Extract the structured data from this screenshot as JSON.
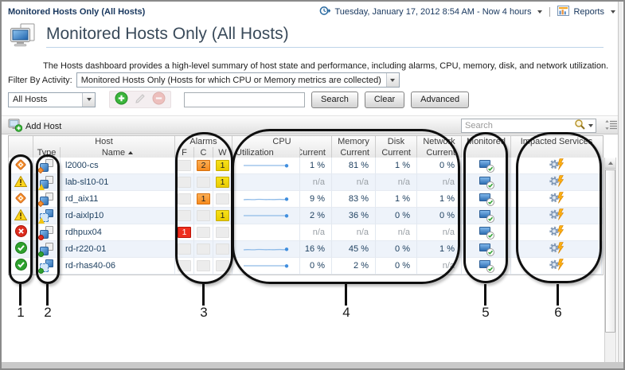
{
  "page": {
    "breadcrumb": "Monitored Hosts Only (All Hosts)",
    "title": "Monitored Hosts Only (All Hosts)",
    "description": "The Hosts dashboard provides a high-level summary of host state and performance, including alarms, CPU, memory, disk, and network utilization.",
    "timebar": {
      "range": "Tuesday, January 17, 2012 8:54 AM - Now 4 hours",
      "reports_label": "Reports"
    }
  },
  "filter": {
    "label": "Filter By Activity:",
    "value": "Monitored Hosts Only (Hosts for which CPU or Memory metrics are collected)"
  },
  "toolbar": {
    "scope_value": "All Hosts",
    "filter_input_value": "",
    "search_button": "Search",
    "clear_button": "Clear",
    "advanced_button": "Advanced"
  },
  "table_toolbar": {
    "add_host_label": "Add Host",
    "search_placeholder": "Search"
  },
  "table": {
    "group_headers": {
      "host": "Host",
      "alarms": "Alarms",
      "cpu": "CPU",
      "memory": "Memory",
      "disk": "Disk",
      "network": "Network",
      "monitored": "Monitored",
      "impacted": "Impacted Services"
    },
    "sub_headers": {
      "type": "Type",
      "name": "Name",
      "f": "F",
      "c": "C",
      "w": "W",
      "utilization": "Utilization",
      "current": "Current"
    },
    "rows": [
      {
        "name": "l2000-cs",
        "severity": "critical",
        "host_type": "physical",
        "alarms": {
          "f": "",
          "c": "2",
          "w": "1"
        },
        "sparkline": "flat",
        "cpu_current": "1 %",
        "memory_current": "81 %",
        "disk_current": "1 %",
        "network_current": "0 %",
        "monitored": true,
        "impacted_services": true
      },
      {
        "name": "lab-sl10-01",
        "severity": "warning",
        "host_type": "physical",
        "alarms": {
          "f": "",
          "c": "",
          "w": "1"
        },
        "sparkline": "none",
        "cpu_current": "n/a",
        "memory_current": "n/a",
        "disk_current": "n/a",
        "network_current": "n/a",
        "monitored": true,
        "impacted_services": true
      },
      {
        "name": "rd_aix11",
        "severity": "critical",
        "host_type": "physical",
        "alarms": {
          "f": "",
          "c": "1",
          "w": ""
        },
        "sparkline": "wavy",
        "cpu_current": "9 %",
        "memory_current": "83 %",
        "disk_current": "1 %",
        "network_current": "1 %",
        "monitored": true,
        "impacted_services": true
      },
      {
        "name": "rd-aixlp10",
        "severity": "warning",
        "host_type": "virtual",
        "alarms": {
          "f": "",
          "c": "",
          "w": "1"
        },
        "sparkline": "flat",
        "cpu_current": "2 %",
        "memory_current": "36 %",
        "disk_current": "0 %",
        "network_current": "0 %",
        "monitored": true,
        "impacted_services": true
      },
      {
        "name": "rdhpux04",
        "severity": "fatal",
        "host_type": "physical",
        "alarms": {
          "f": "1",
          "c": "",
          "w": ""
        },
        "sparkline": "none",
        "cpu_current": "n/a",
        "memory_current": "n/a",
        "disk_current": "n/a",
        "network_current": "n/a",
        "monitored": true,
        "impacted_services": true
      },
      {
        "name": "rd-r220-01",
        "severity": "normal",
        "host_type": "physical",
        "alarms": {
          "f": "",
          "c": "",
          "w": ""
        },
        "sparkline": "wavy",
        "cpu_current": "16 %",
        "memory_current": "45 %",
        "disk_current": "0 %",
        "network_current": "1 %",
        "monitored": true,
        "impacted_services": true
      },
      {
        "name": "rd-rhas40-06",
        "severity": "normal",
        "host_type": "virtual",
        "alarms": {
          "f": "",
          "c": "",
          "w": ""
        },
        "sparkline": "flat",
        "cpu_current": "0 %",
        "memory_current": "2 %",
        "disk_current": "0 %",
        "network_current": "n/a",
        "monitored": true,
        "impacted_services": true
      }
    ]
  },
  "annotations": {
    "labels": [
      "1",
      "2",
      "3",
      "4",
      "5",
      "6"
    ]
  },
  "colors": {
    "alarm_fatal": "#ee2e1e",
    "alarm_critical": "#f68b1f",
    "alarm_warning": "#efd400",
    "status_normal": "#2ea12e",
    "sparkline_blue": "#8fbbe8",
    "accent_blue": "#2f6fb2"
  }
}
